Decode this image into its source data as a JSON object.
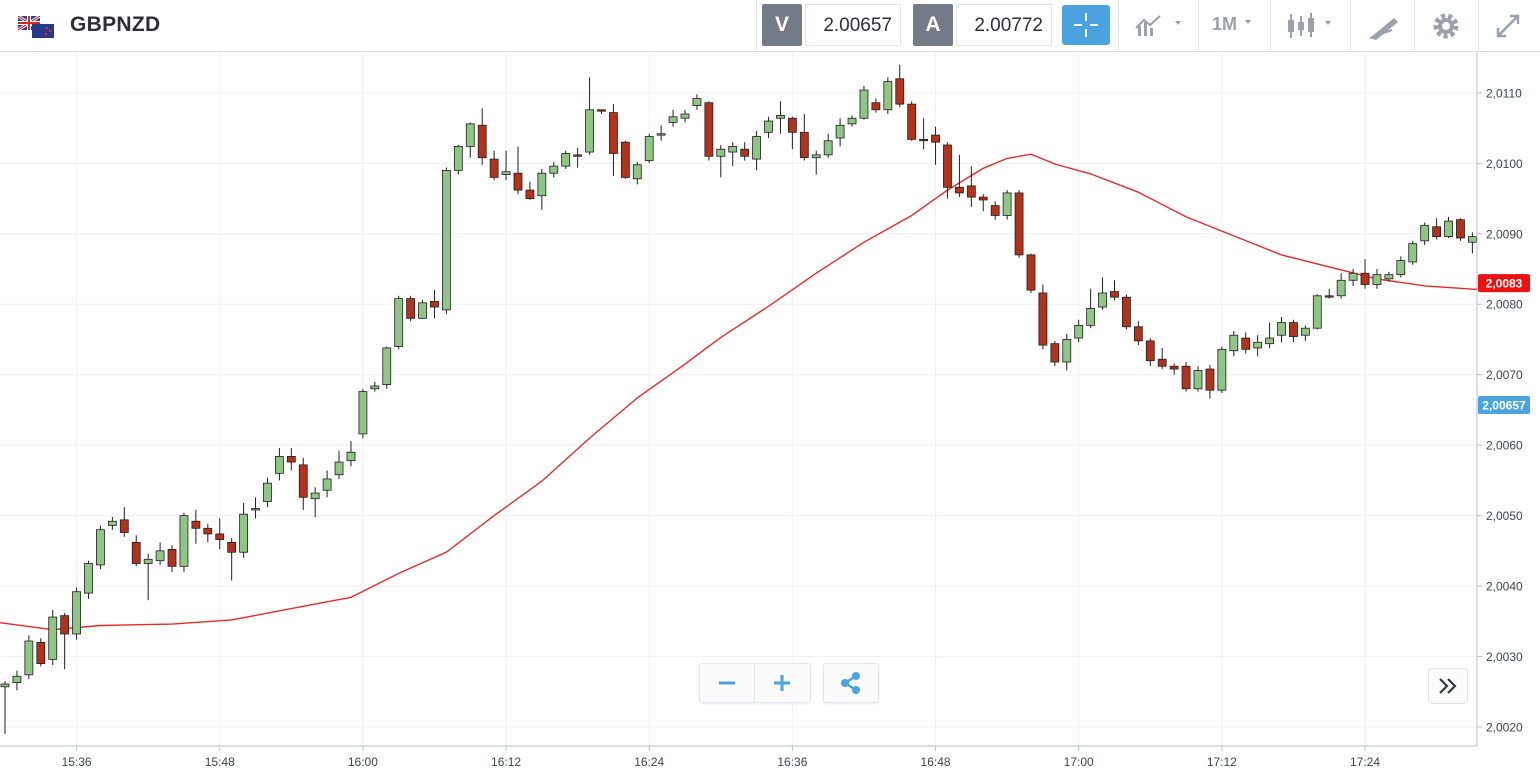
{
  "header": {
    "symbol": "GBPNZD",
    "bid_tag": "V",
    "bid_value": "2.00657",
    "ask_tag": "A",
    "ask_value": "2.00772",
    "timeframe": "1M",
    "icons": [
      "flag-gb-nz-icon",
      "crosshair-icon",
      "indicators-icon",
      "candlestick-icon",
      "drawing-tools-icon",
      "gear-icon",
      "fullscreen-icon"
    ]
  },
  "colors": {
    "up_candle": "#8fc585",
    "down_candle": "#b3321b",
    "moving_average": "#e32b2b",
    "ma_label_bg": "#ee1111",
    "bid_label_bg": "#4aa3df",
    "accent": "#4aa3df"
  },
  "chart_data": {
    "type": "candlestick",
    "x_tick_labels": [
      "15:36",
      "15:48",
      "16:00",
      "16:12",
      "16:24",
      "16:36",
      "16:48",
      "17:00",
      "17:12",
      "17:24"
    ],
    "y_tick_labels": [
      "2,0110",
      "2,0100",
      "2,0090",
      "2,0080",
      "2,0070",
      "2,0060",
      "2,0050",
      "2,0040",
      "2,0030",
      "2,0020"
    ],
    "ylim": [
      2.00173,
      2.01158
    ],
    "grid": true,
    "moving_average_label": "2,0083",
    "bid_label": "2,00657",
    "moving_average": [
      [
        0,
        2.00348
      ],
      [
        4,
        2.00338
      ],
      [
        8,
        2.00344
      ],
      [
        14,
        2.00346
      ],
      [
        19,
        2.00352
      ],
      [
        24,
        2.00368
      ],
      [
        29,
        2.00384
      ],
      [
        33,
        2.00418
      ],
      [
        37,
        2.00448
      ],
      [
        41,
        2.005
      ],
      [
        45,
        2.00549
      ],
      [
        49,
        2.0061
      ],
      [
        53,
        2.00667
      ],
      [
        57,
        2.00715
      ],
      [
        60,
        2.00753
      ],
      [
        64,
        2.00797
      ],
      [
        68,
        2.00844
      ],
      [
        72,
        2.00888
      ],
      [
        76,
        2.00926
      ],
      [
        79,
        2.00962
      ],
      [
        82,
        2.00993
      ],
      [
        84,
        2.01007
      ],
      [
        86,
        2.01013
      ],
      [
        88,
        2.00999
      ],
      [
        91,
        2.00985
      ],
      [
        95,
        2.00959
      ],
      [
        99,
        2.00924
      ],
      [
        103,
        2.00897
      ],
      [
        107,
        2.0087
      ],
      [
        111,
        2.00853
      ],
      [
        115,
        2.00836
      ],
      [
        119,
        2.00826
      ],
      [
        121,
        2.00821
      ]
    ],
    "candles": [
      [
        2.00257,
        2.00261,
        2.0019,
        2.00265
      ],
      [
        2.00263,
        2.00272,
        2.00252,
        2.0028
      ],
      [
        2.00274,
        2.00322,
        2.00268,
        2.0033
      ],
      [
        2.0032,
        2.0029,
        2.00286,
        2.00326
      ],
      [
        2.00296,
        2.00356,
        2.00288,
        2.00366
      ],
      [
        2.00358,
        2.00332,
        2.00282,
        2.00362
      ],
      [
        2.00332,
        2.00392,
        2.00324,
        2.00398
      ],
      [
        2.0039,
        2.00432,
        2.00382,
        2.00436
      ],
      [
        2.0043,
        2.0048,
        2.00424,
        2.00486
      ],
      [
        2.00486,
        2.00492,
        2.0048,
        2.00498
      ],
      [
        2.00494,
        2.00476,
        2.0047,
        2.00512
      ],
      [
        2.00462,
        2.00432,
        2.00428,
        2.00472
      ],
      [
        2.00432,
        2.00438,
        2.0038,
        2.00446
      ],
      [
        2.00436,
        2.0045,
        2.0043,
        2.00462
      ],
      [
        2.00452,
        2.00428,
        2.0042,
        2.00458
      ],
      [
        2.00428,
        2.005,
        2.0042,
        2.00504
      ],
      [
        2.00492,
        2.00482,
        2.0046,
        2.00508
      ],
      [
        2.00482,
        2.00474,
        2.00462,
        2.00488
      ],
      [
        2.00474,
        2.00466,
        2.00452,
        2.00496
      ],
      [
        2.00462,
        2.00448,
        2.00408,
        2.00468
      ],
      [
        2.00448,
        2.00502,
        2.0044,
        2.00518
      ],
      [
        2.00508,
        2.0051,
        2.00496,
        2.00526
      ],
      [
        2.0052,
        2.00546,
        2.00512,
        2.00554
      ],
      [
        2.0056,
        2.00584,
        2.0055,
        2.00596
      ],
      [
        2.00584,
        2.00576,
        2.00564,
        2.00596
      ],
      [
        2.00572,
        2.00526,
        2.00508,
        2.00582
      ],
      [
        2.00524,
        2.00532,
        2.00498,
        2.0054
      ],
      [
        2.00536,
        2.00552,
        2.00526,
        2.00564
      ],
      [
        2.00558,
        2.00576,
        2.00552,
        2.00592
      ],
      [
        2.00578,
        2.0059,
        2.0057,
        2.00606
      ],
      [
        2.00616,
        2.00676,
        2.0061,
        2.0068
      ],
      [
        2.0068,
        2.00684,
        2.00676,
        2.0069
      ],
      [
        2.00686,
        2.00738,
        2.0068,
        2.0074
      ],
      [
        2.0074,
        2.00808,
        2.00736,
        2.00812
      ],
      [
        2.00808,
        2.0078,
        2.00776,
        2.00812
      ],
      [
        2.0078,
        2.00802,
        2.0078,
        2.00806
      ],
      [
        2.00804,
        2.00796,
        2.0078,
        2.0082
      ],
      [
        2.00792,
        2.0099,
        2.00786,
        2.00994
      ],
      [
        2.0099,
        2.01024,
        2.00984,
        2.01026
      ],
      [
        2.01024,
        2.01056,
        2.01008,
        2.01058
      ],
      [
        2.01054,
        2.01008,
        2.00998,
        2.01078
      ],
      [
        2.01006,
        2.0098,
        2.00976,
        2.01018
      ],
      [
        2.00984,
        2.00988,
        2.00976,
        2.01018
      ],
      [
        2.00986,
        2.00962,
        2.00956,
        2.01024
      ],
      [
        2.00962,
        2.0095,
        2.00948,
        2.00974
      ],
      [
        2.00954,
        2.00986,
        2.00934,
        2.00992
      ],
      [
        2.00986,
        2.00996,
        2.0098,
        2.01002
      ],
      [
        2.00996,
        2.01014,
        2.00992,
        2.01018
      ],
      [
        2.01012,
        2.0101,
        2.00994,
        2.01022
      ],
      [
        2.01016,
        2.01076,
        2.01012,
        2.01122
      ],
      [
        2.01076,
        2.01074,
        2.0107,
        2.01076
      ],
      [
        2.01072,
        2.01014,
        2.00982,
        2.01084
      ],
      [
        2.0103,
        2.0098,
        2.00978,
        2.01032
      ],
      [
        2.00978,
        2.00998,
        2.0097,
        2.01002
      ],
      [
        2.01004,
        2.01038,
        2.01,
        2.01042
      ],
      [
        2.0104,
        2.01042,
        2.01032,
        2.01054
      ],
      [
        2.01058,
        2.01066,
        2.01052,
        2.01076
      ],
      [
        2.01064,
        2.0107,
        2.01058,
        2.01076
      ],
      [
        2.01082,
        2.01092,
        2.01076,
        2.01098
      ],
      [
        2.01086,
        2.0101,
        2.01004,
        2.01088
      ],
      [
        2.0101,
        2.0102,
        2.0098,
        2.01026
      ],
      [
        2.01016,
        2.01024,
        2.00996,
        2.0103
      ],
      [
        2.0102,
        2.0101,
        2.01004,
        2.0103
      ],
      [
        2.01006,
        2.01038,
        2.0099,
        2.01046
      ],
      [
        2.01044,
        2.0106,
        2.01036,
        2.01066
      ],
      [
        2.01064,
        2.01068,
        2.01042,
        2.01088
      ],
      [
        2.01064,
        2.01044,
        2.0102,
        2.01066
      ],
      [
        2.01044,
        2.01008,
        2.01004,
        2.0107
      ],
      [
        2.01008,
        2.01012,
        2.00984,
        2.01018
      ],
      [
        2.01012,
        2.01032,
        2.01008,
        2.01042
      ],
      [
        2.01036,
        2.01054,
        2.01024,
        2.01064
      ],
      [
        2.01056,
        2.01064,
        2.01052,
        2.01068
      ],
      [
        2.01064,
        2.01104,
        2.01062,
        2.0111
      ],
      [
        2.01086,
        2.01076,
        2.01072,
        2.01092
      ],
      [
        2.01076,
        2.01116,
        2.0107,
        2.01122
      ],
      [
        2.0112,
        2.01084,
        2.0108,
        2.0114
      ],
      [
        2.01084,
        2.01034,
        2.01032,
        2.01088
      ],
      [
        2.01034,
        2.01032,
        2.0102,
        2.01064
      ],
      [
        2.0104,
        2.0103,
        2.00998,
        2.01052
      ],
      [
        2.01026,
        2.00966,
        2.0095,
        2.0103
      ],
      [
        2.00966,
        2.00958,
        2.00952,
        2.01012
      ],
      [
        2.00968,
        2.00952,
        2.00938,
        2.00996
      ],
      [
        2.00952,
        2.00948,
        2.00932,
        2.00956
      ],
      [
        2.0094,
        2.00926,
        2.0092,
        2.00946
      ],
      [
        2.00926,
        2.00958,
        2.0092,
        2.00962
      ],
      [
        2.00958,
        2.0087,
        2.00866,
        2.00962
      ],
      [
        2.0087,
        2.0082,
        2.00816,
        2.00872
      ],
      [
        2.00816,
        2.00742,
        2.00736,
        2.00828
      ],
      [
        2.00744,
        2.00718,
        2.00712,
        2.00748
      ],
      [
        2.00718,
        2.0075,
        2.00706,
        2.00758
      ],
      [
        2.00752,
        2.0077,
        2.00746,
        2.00778
      ],
      [
        2.0077,
        2.00794,
        2.00766,
        2.00822
      ],
      [
        2.00796,
        2.00816,
        2.00792,
        2.00838
      ],
      [
        2.00818,
        2.0081,
        2.00806,
        2.00834
      ],
      [
        2.0081,
        2.00768,
        2.00764,
        2.00814
      ],
      [
        2.00768,
        2.00748,
        2.00742,
        2.00776
      ],
      [
        2.00748,
        2.0072,
        2.00712,
        2.00752
      ],
      [
        2.00722,
        2.00712,
        2.00708,
        2.00738
      ],
      [
        2.00712,
        2.00708,
        2.007,
        2.00716
      ],
      [
        2.00712,
        2.0068,
        2.00676,
        2.00718
      ],
      [
        2.0068,
        2.00706,
        2.00676,
        2.00712
      ],
      [
        2.00708,
        2.00678,
        2.00666,
        2.00714
      ],
      [
        2.00678,
        2.00736,
        2.00674,
        2.0074
      ],
      [
        2.00734,
        2.00756,
        2.00726,
        2.00762
      ],
      [
        2.00752,
        2.00736,
        2.0073,
        2.0076
      ],
      [
        2.00738,
        2.00746,
        2.00726,
        2.00756
      ],
      [
        2.00744,
        2.00752,
        2.00738,
        2.00774
      ],
      [
        2.00756,
        2.00774,
        2.00746,
        2.00782
      ],
      [
        2.00774,
        2.00754,
        2.00746,
        2.00778
      ],
      [
        2.00756,
        2.00766,
        2.00748,
        2.0077
      ],
      [
        2.00766,
        2.00812,
        2.00764,
        2.00814
      ],
      [
        2.00812,
        2.0081,
        2.00808,
        2.00822
      ],
      [
        2.00812,
        2.00834,
        2.00808,
        2.00844
      ],
      [
        2.00834,
        2.00844,
        2.00826,
        2.0085
      ],
      [
        2.00844,
        2.00828,
        2.00822,
        2.00864
      ],
      [
        2.00828,
        2.00842,
        2.00822,
        2.0085
      ],
      [
        2.00836,
        2.00842,
        2.00832,
        2.00846
      ],
      [
        2.00842,
        2.00862,
        2.00838,
        2.00868
      ],
      [
        2.0086,
        2.00886,
        2.00856,
        2.0089
      ],
      [
        2.0089,
        2.00912,
        2.00884,
        2.00916
      ],
      [
        2.0091,
        2.00896,
        2.00892,
        2.00922
      ],
      [
        2.00896,
        2.00918,
        2.00894,
        2.00924
      ],
      [
        2.0092,
        2.00894,
        2.0089,
        2.00922
      ],
      [
        2.00888,
        2.00896,
        2.00872,
        2.00902
      ]
    ]
  },
  "controls": {
    "zoom_out_icon": "minus-icon",
    "zoom_in_icon": "plus-icon",
    "share_icon": "share-icon",
    "scroll_right_icon": "double-chevron-right-icon"
  }
}
